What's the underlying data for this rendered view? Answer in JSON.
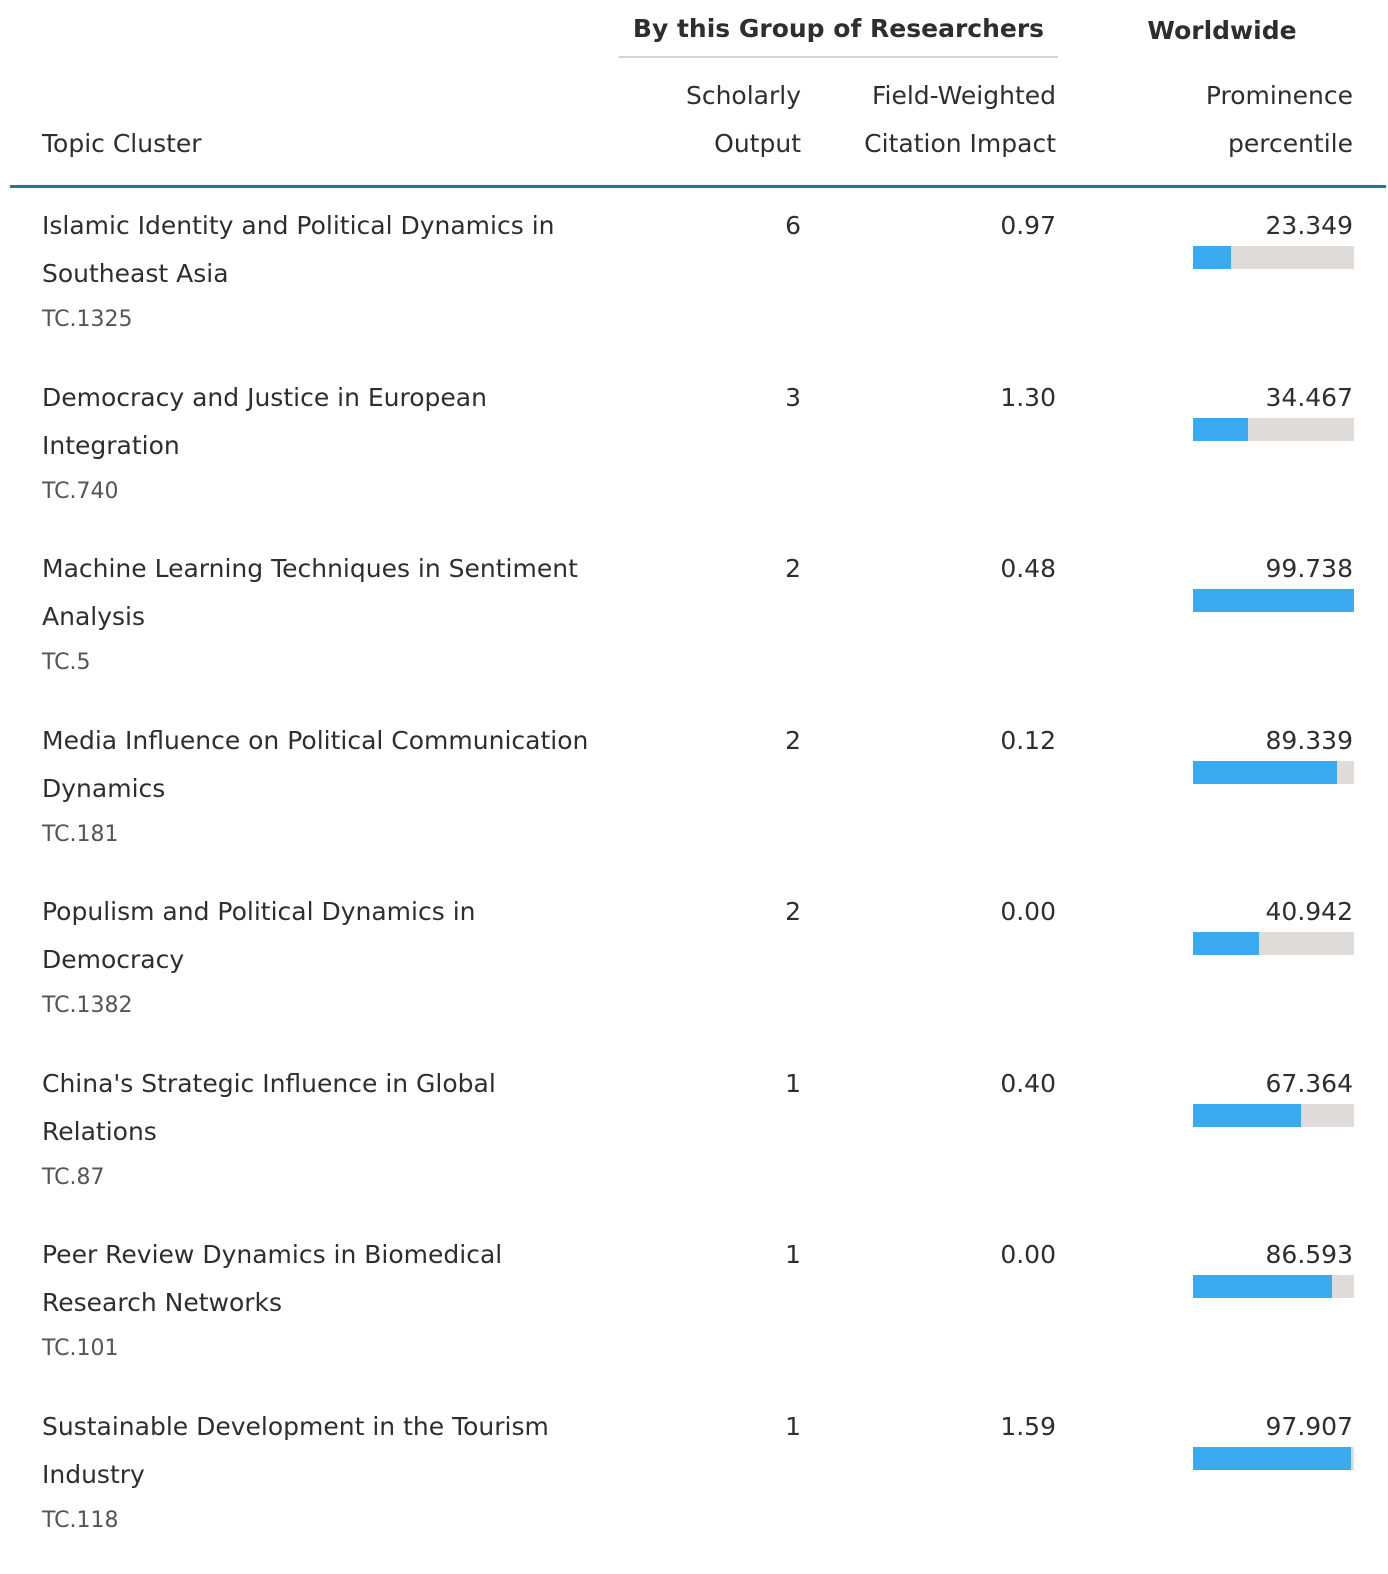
{
  "header": {
    "group_left": "By this Group of Researchers",
    "group_right": "Worldwide",
    "columns": [
      {
        "lines": [
          "Topic Cluster"
        ]
      },
      {
        "lines": [
          "Scholarly",
          "Output"
        ]
      },
      {
        "lines": [
          "Field-Weighted",
          "Citation Impact"
        ]
      },
      {
        "lines": [
          "Prominence",
          "percentile"
        ]
      }
    ]
  },
  "table": {
    "rows": [
      {
        "topic": "Islamic Identity and Political Dynamics in Southeast Asia",
        "code": "TC.1325",
        "output": "6",
        "fwci": "0.97",
        "prominence": "23.349"
      },
      {
        "topic": "Democracy and Justice in European Integration",
        "code": "TC.740",
        "output": "3",
        "fwci": "1.30",
        "prominence": "34.467"
      },
      {
        "topic": "Machine Learning Techniques in Sentiment Analysis",
        "code": "TC.5",
        "output": "2",
        "fwci": "0.48",
        "prominence": "99.738"
      },
      {
        "topic": "Media Influence on Political Communication Dynamics",
        "code": "TC.181",
        "output": "2",
        "fwci": "0.12",
        "prominence": "89.339"
      },
      {
        "topic": "Populism and Political Dynamics in Democracy",
        "code": "TC.1382",
        "output": "2",
        "fwci": "0.00",
        "prominence": "40.942"
      },
      {
        "topic": "China's Strategic Influence in Global Relations",
        "code": "TC.87",
        "output": "1",
        "fwci": "0.40",
        "prominence": "67.364"
      },
      {
        "topic": "Peer Review Dynamics in Biomedical Research Networks",
        "code": "TC.101",
        "output": "1",
        "fwci": "0.00",
        "prominence": "86.593"
      },
      {
        "topic": "Sustainable Development in the Tourism Industry",
        "code": "TC.118",
        "output": "1",
        "fwci": "1.59",
        "prominence": "97.907"
      }
    ]
  }
}
